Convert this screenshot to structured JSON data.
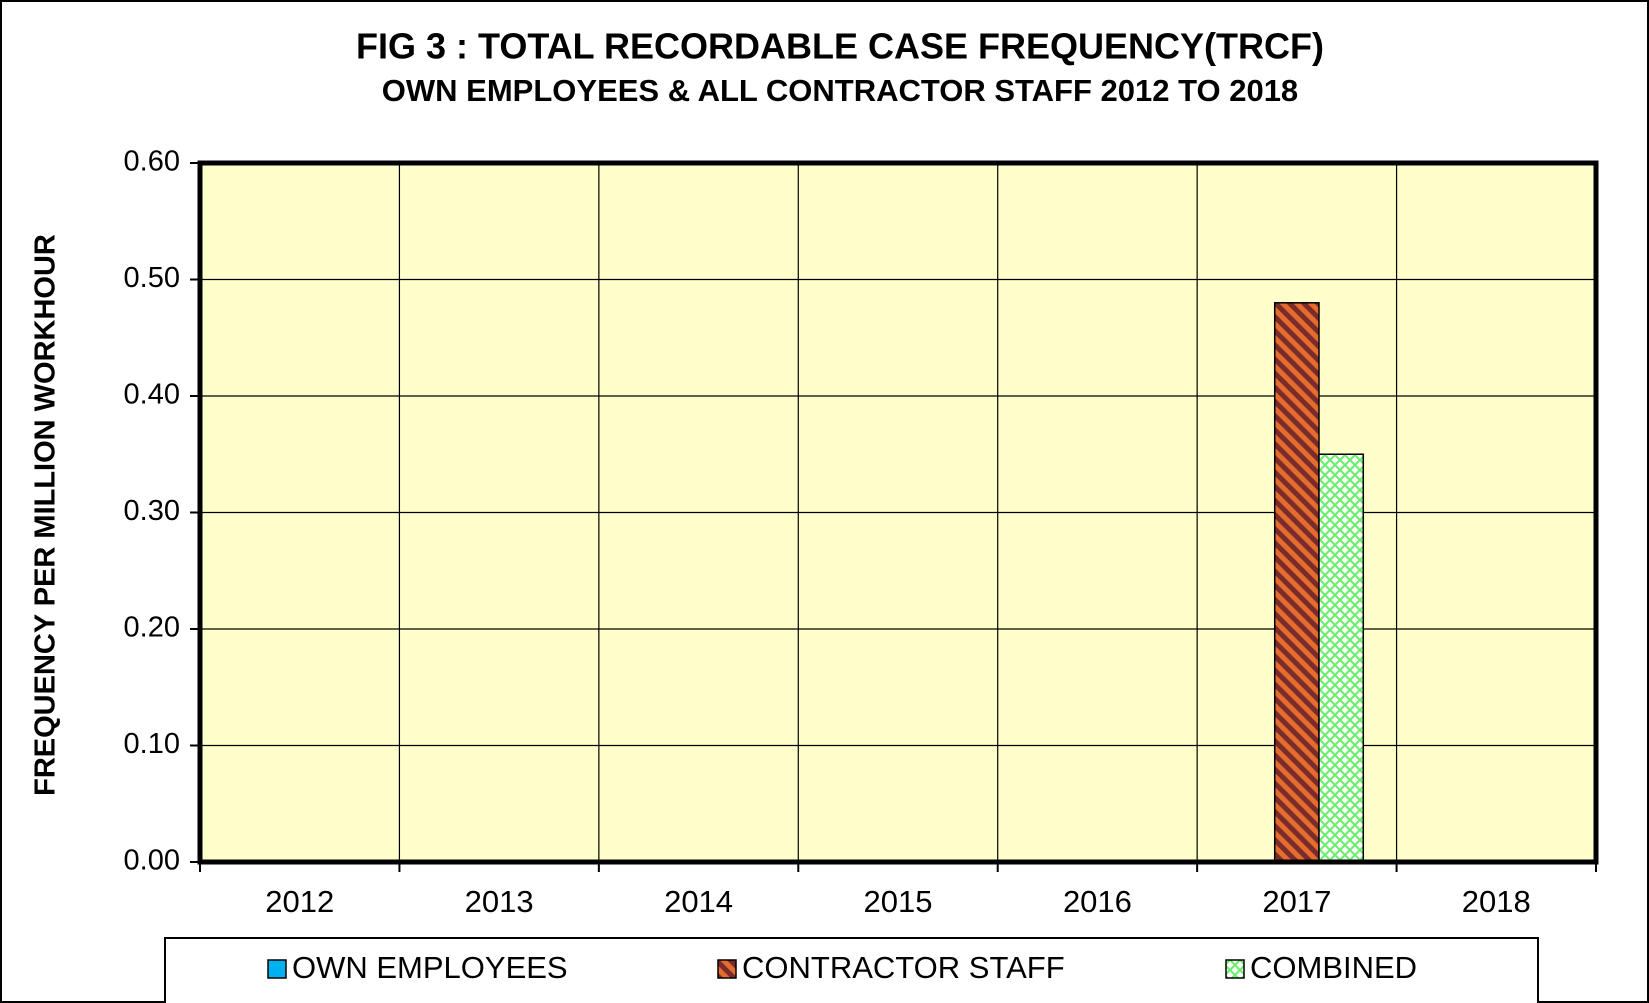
{
  "chart_data": {
    "type": "bar",
    "title": "FIG 3 : TOTAL RECORDABLE CASE FREQUENCY(TRCF)",
    "subtitle": "OWN EMPLOYEES & ALL CONTRACTOR STAFF 2012 TO 2018",
    "y_label": "FREQUENCY PER MILLION WORKHOUR",
    "categories": [
      "2012",
      "2013",
      "2014",
      "2015",
      "2016",
      "2017",
      "2018"
    ],
    "series": [
      {
        "name": "OWN EMPLOYEES",
        "color": "#00b0f0",
        "values": [
          0,
          0,
          0,
          0,
          0,
          0,
          0
        ]
      },
      {
        "name": "CONTRACTOR STAFF",
        "color": "#e46c2c",
        "values": [
          0,
          0,
          0,
          0,
          0,
          0.48,
          0
        ]
      },
      {
        "name": "COMBINED",
        "color": "#66ee66",
        "values": [
          0,
          0,
          0,
          0,
          0,
          0.35,
          0
        ]
      }
    ],
    "ylim": [
      0,
      0.6
    ],
    "yticks": [
      {
        "value": 0,
        "label": "0.00"
      },
      {
        "value": 0.1,
        "label": "0.10"
      },
      {
        "value": 0.2,
        "label": "0.20"
      },
      {
        "value": 0.3,
        "label": "0.30"
      },
      {
        "value": 0.4,
        "label": "0.40"
      },
      {
        "value": 0.5,
        "label": "0.50"
      },
      {
        "value": 0.6,
        "label": "0.60"
      }
    ],
    "grid": true,
    "legend": "bottom"
  }
}
